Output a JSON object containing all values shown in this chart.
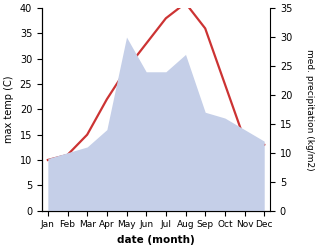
{
  "months": [
    "Jan",
    "Feb",
    "Mar",
    "Apr",
    "May",
    "Jun",
    "Jul",
    "Aug",
    "Sep",
    "Oct",
    "Nov",
    "Dec"
  ],
  "temperature": [
    10,
    11,
    15,
    22,
    28,
    33,
    38,
    41,
    36,
    25,
    14,
    13
  ],
  "precipitation": [
    9,
    10,
    11,
    14,
    30,
    24,
    24,
    27,
    17,
    16,
    14,
    12
  ],
  "temp_color": "#cc3333",
  "precip_color_fill": "#c5cfe8",
  "ylabel_left": "max temp (C)",
  "ylabel_right": "med. precipitation (kg/m2)",
  "xlabel": "date (month)",
  "ylim_left": [
    0,
    40
  ],
  "ylim_right": [
    0,
    35
  ],
  "background_color": "#ffffff",
  "temp_linewidth": 1.6
}
